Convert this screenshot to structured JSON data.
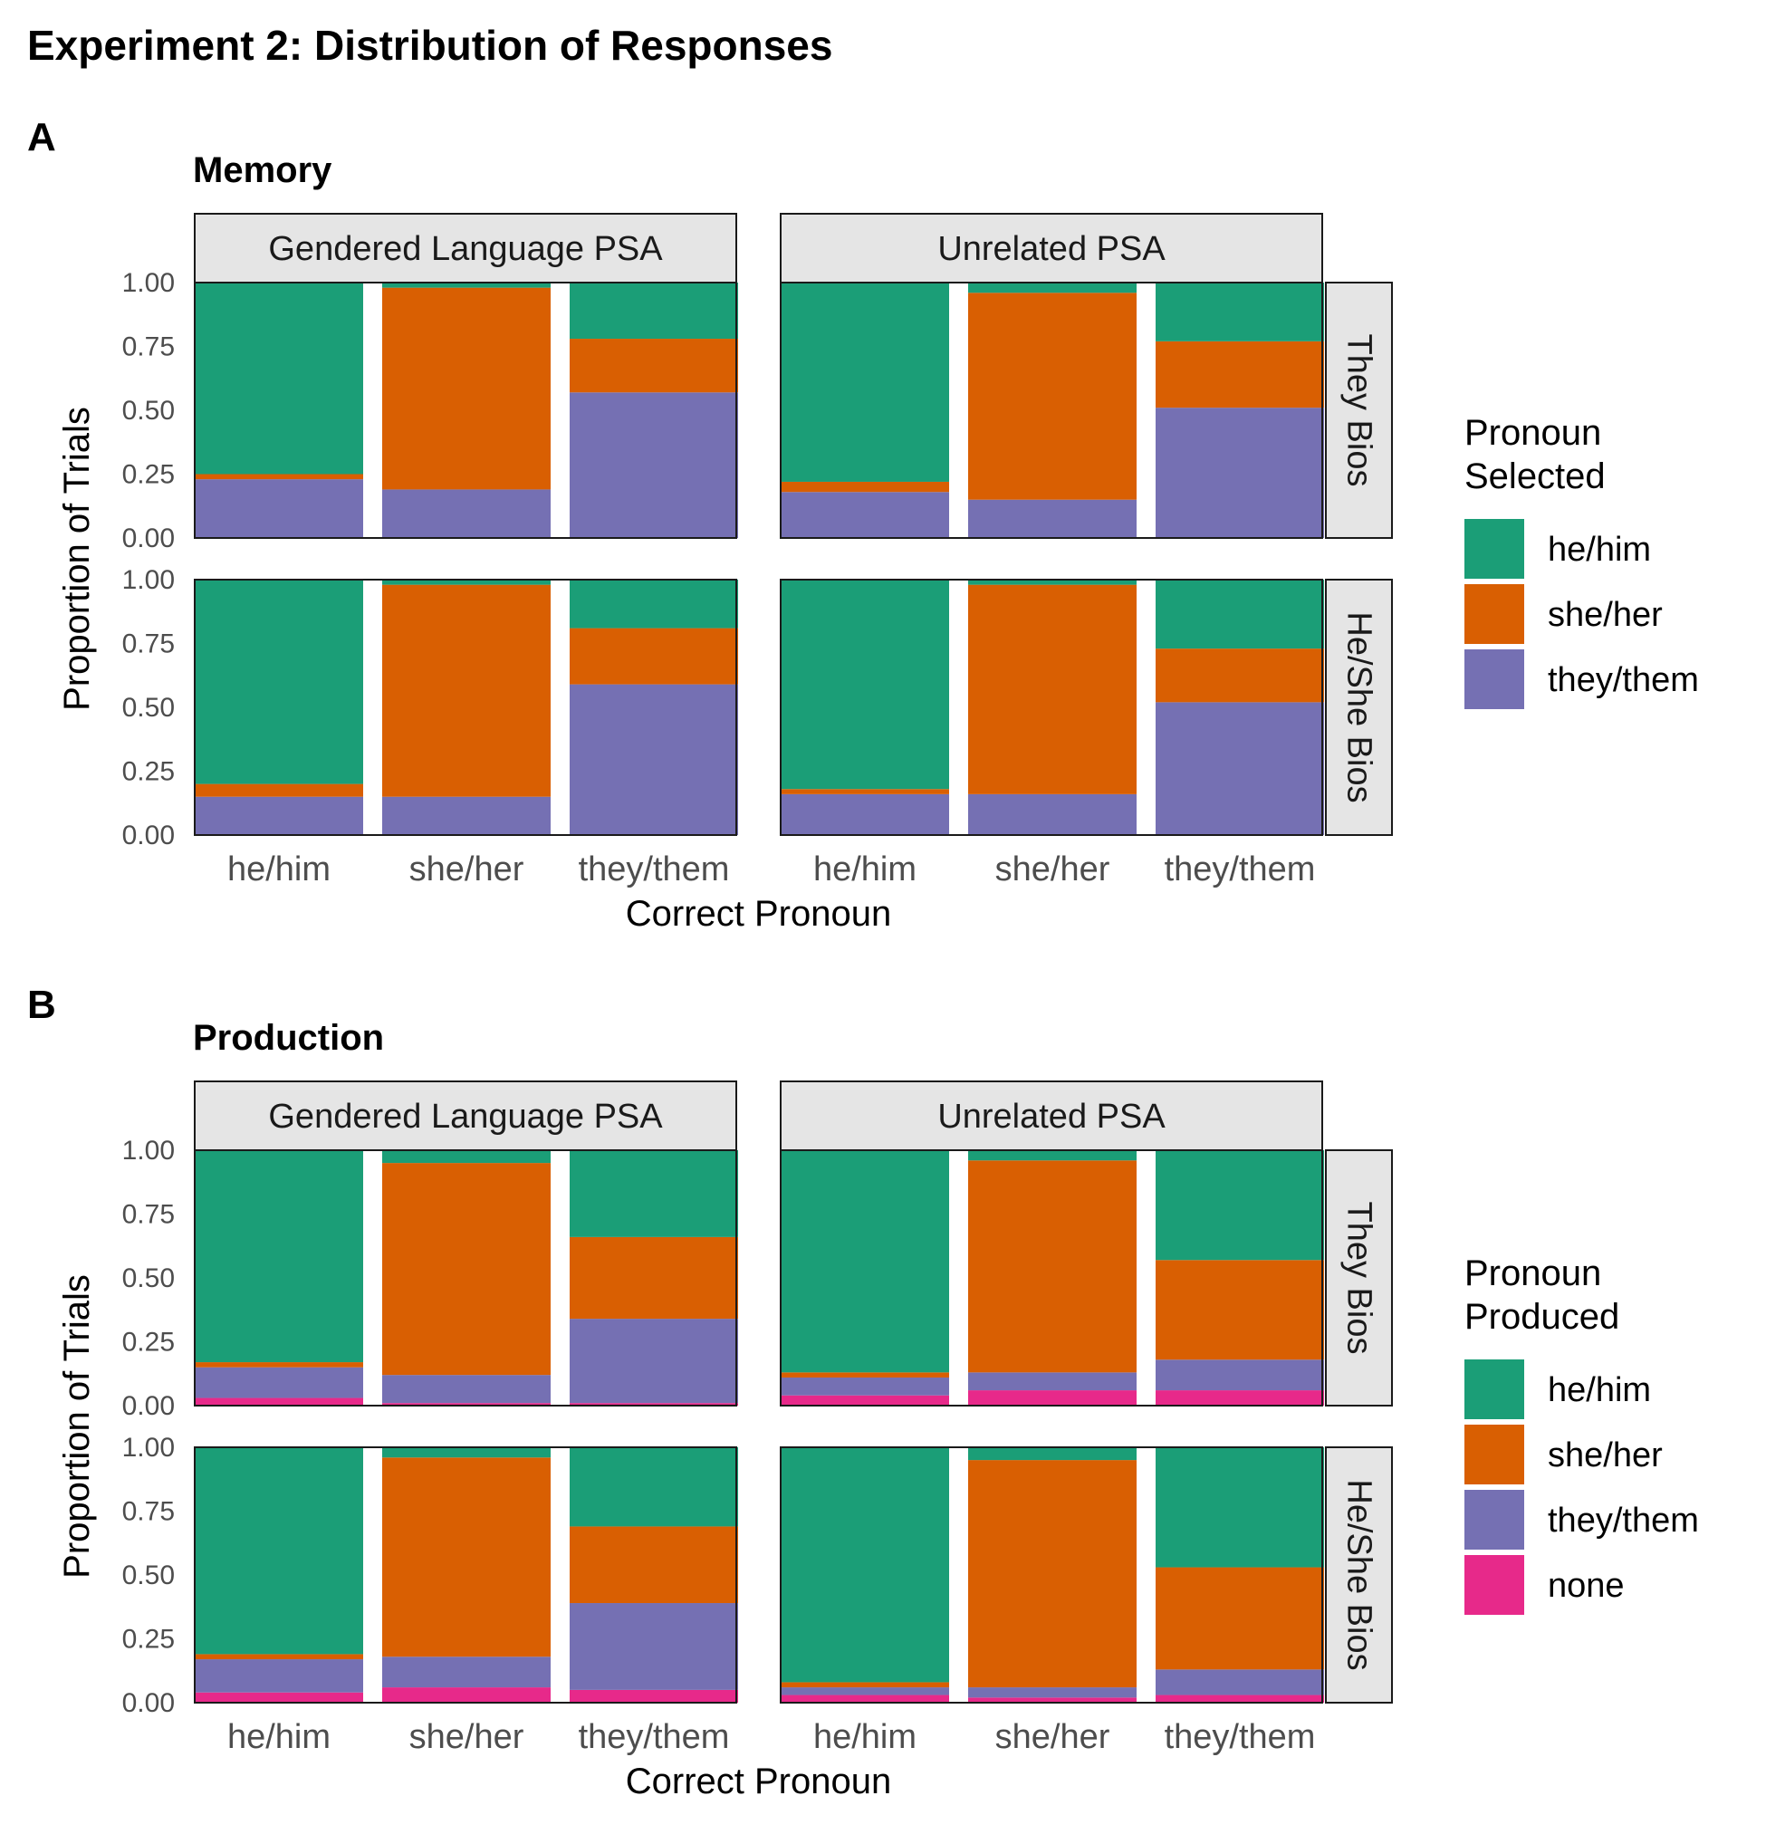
{
  "figure_title": "Experiment 2: Distribution of Responses",
  "colors": {
    "he/him": "#1b9e77",
    "she/her": "#d95f02",
    "they/them": "#7570b3",
    "none": "#e7298a",
    "strip_fill": "#e5e5e5"
  },
  "chart_data": [
    {
      "type": "bar",
      "stacked": true,
      "panel_tag": "A",
      "title": "Memory",
      "xlabel": "Correct Pronoun",
      "ylabel": "Proportion of Trials",
      "ylim": [
        0,
        1
      ],
      "yticks": [
        "0.00",
        "0.25",
        "0.50",
        "0.75",
        "1.00"
      ],
      "categories": [
        "he/him",
        "she/her",
        "they/them"
      ],
      "col_facets": [
        "Gendered Language PSA",
        "Unrelated PSA"
      ],
      "row_facets": [
        "They Bios",
        "He/She Bios"
      ],
      "legend": {
        "title_lines": [
          "Pronoun",
          "Selected"
        ],
        "entries": [
          "he/him",
          "she/her",
          "they/them"
        ],
        "position": "right"
      },
      "facets": [
        {
          "row": "They Bios",
          "col": "Gendered Language PSA",
          "series": [
            {
              "name": "they/them",
              "values": [
                0.23,
                0.19,
                0.57
              ]
            },
            {
              "name": "she/her",
              "values": [
                0.02,
                0.79,
                0.21
              ]
            },
            {
              "name": "he/him",
              "values": [
                0.75,
                0.02,
                0.22
              ]
            }
          ]
        },
        {
          "row": "They Bios",
          "col": "Unrelated PSA",
          "series": [
            {
              "name": "they/them",
              "values": [
                0.18,
                0.15,
                0.51
              ]
            },
            {
              "name": "she/her",
              "values": [
                0.04,
                0.81,
                0.26
              ]
            },
            {
              "name": "he/him",
              "values": [
                0.78,
                0.04,
                0.23
              ]
            }
          ]
        },
        {
          "row": "He/She Bios",
          "col": "Gendered Language PSA",
          "series": [
            {
              "name": "they/them",
              "values": [
                0.15,
                0.15,
                0.59
              ]
            },
            {
              "name": "she/her",
              "values": [
                0.05,
                0.83,
                0.22
              ]
            },
            {
              "name": "he/him",
              "values": [
                0.8,
                0.02,
                0.19
              ]
            }
          ]
        },
        {
          "row": "He/She Bios",
          "col": "Unrelated PSA",
          "series": [
            {
              "name": "they/them",
              "values": [
                0.16,
                0.16,
                0.52
              ]
            },
            {
              "name": "she/her",
              "values": [
                0.02,
                0.82,
                0.21
              ]
            },
            {
              "name": "he/him",
              "values": [
                0.82,
                0.02,
                0.27
              ]
            }
          ]
        }
      ]
    },
    {
      "type": "bar",
      "stacked": true,
      "panel_tag": "B",
      "title": "Production",
      "xlabel": "Correct Pronoun",
      "ylabel": "Proportion of Trials",
      "ylim": [
        0,
        1
      ],
      "yticks": [
        "0.00",
        "0.25",
        "0.50",
        "0.75",
        "1.00"
      ],
      "categories": [
        "he/him",
        "she/her",
        "they/them"
      ],
      "col_facets": [
        "Gendered Language PSA",
        "Unrelated PSA"
      ],
      "row_facets": [
        "They Bios",
        "He/She Bios"
      ],
      "legend": {
        "title_lines": [
          "Pronoun",
          "Produced"
        ],
        "entries": [
          "he/him",
          "she/her",
          "they/them",
          "none"
        ],
        "position": "right"
      },
      "facets": [
        {
          "row": "They Bios",
          "col": "Gendered Language PSA",
          "series": [
            {
              "name": "none",
              "values": [
                0.03,
                0.01,
                0.01
              ]
            },
            {
              "name": "they/them",
              "values": [
                0.12,
                0.11,
                0.33
              ]
            },
            {
              "name": "she/her",
              "values": [
                0.02,
                0.83,
                0.32
              ]
            },
            {
              "name": "he/him",
              "values": [
                0.83,
                0.05,
                0.34
              ]
            }
          ]
        },
        {
          "row": "They Bios",
          "col": "Unrelated PSA",
          "series": [
            {
              "name": "none",
              "values": [
                0.04,
                0.06,
                0.06
              ]
            },
            {
              "name": "they/them",
              "values": [
                0.07,
                0.07,
                0.12
              ]
            },
            {
              "name": "she/her",
              "values": [
                0.02,
                0.83,
                0.39
              ]
            },
            {
              "name": "he/him",
              "values": [
                0.87,
                0.04,
                0.43
              ]
            }
          ]
        },
        {
          "row": "He/She Bios",
          "col": "Gendered Language PSA",
          "series": [
            {
              "name": "none",
              "values": [
                0.04,
                0.06,
                0.05
              ]
            },
            {
              "name": "they/them",
              "values": [
                0.13,
                0.12,
                0.34
              ]
            },
            {
              "name": "she/her",
              "values": [
                0.02,
                0.78,
                0.3
              ]
            },
            {
              "name": "he/him",
              "values": [
                0.81,
                0.04,
                0.31
              ]
            }
          ]
        },
        {
          "row": "He/She Bios",
          "col": "Unrelated PSA",
          "series": [
            {
              "name": "none",
              "values": [
                0.03,
                0.02,
                0.03
              ]
            },
            {
              "name": "they/them",
              "values": [
                0.03,
                0.04,
                0.1
              ]
            },
            {
              "name": "she/her",
              "values": [
                0.02,
                0.89,
                0.4
              ]
            },
            {
              "name": "he/him",
              "values": [
                0.92,
                0.05,
                0.47
              ]
            }
          ]
        }
      ]
    }
  ]
}
